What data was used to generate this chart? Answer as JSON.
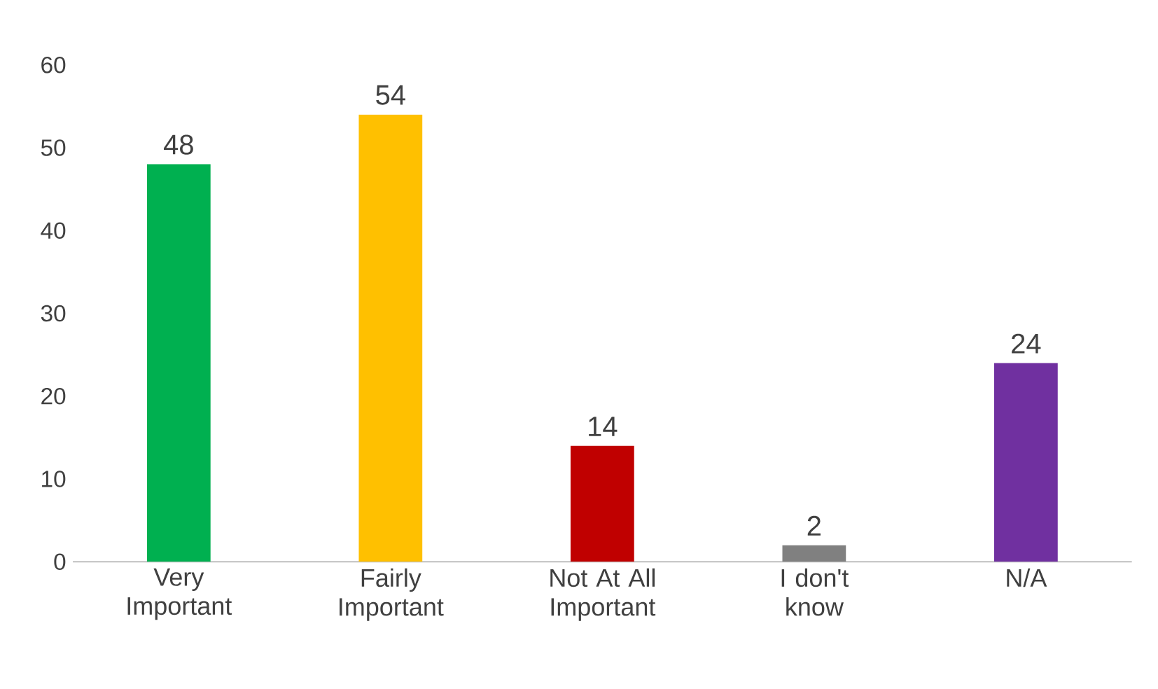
{
  "chart_data": {
    "type": "bar",
    "categories": [
      "Very Important",
      "Fairly Important",
      "Not At All Important",
      "I don't know",
      "N/A"
    ],
    "values": [
      48,
      54,
      14,
      2,
      24
    ],
    "colors": [
      "#00b050",
      "#ffc000",
      "#c00000",
      "#808080",
      "#7030a0"
    ],
    "ylim": [
      0,
      60
    ],
    "yticks": [
      0,
      10,
      20,
      30,
      40,
      50,
      60
    ],
    "data_labels": true
  }
}
